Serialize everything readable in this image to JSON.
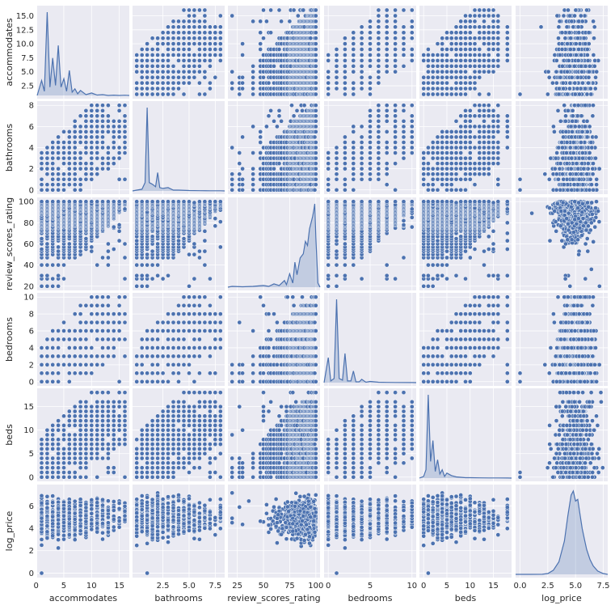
{
  "chart_data": {
    "type": "pairplot",
    "variables": [
      "accommodates",
      "bathrooms",
      "review_scores_rating",
      "bedrooms",
      "beds",
      "log_price"
    ],
    "point_color": "#4c72b0",
    "panel_background": "#eaeaf2",
    "grid": true,
    "axes": {
      "accommodates": {
        "range": [
          0.2,
          16.8
        ],
        "ticks": [
          0,
          5,
          10,
          15
        ],
        "tick_labels": [
          "0",
          "5",
          "10",
          "15"
        ],
        "y_ticks": [
          2.5,
          5.0,
          7.5,
          10.0,
          12.5,
          15.0
        ],
        "y_tick_labels": [
          "2.5",
          "5.0",
          "7.5",
          "10.0",
          "12.5",
          "15.0"
        ],
        "levels": [
          1,
          2,
          3,
          4,
          5,
          6,
          7,
          8,
          9,
          10,
          11,
          12,
          13,
          14,
          15,
          16
        ]
      },
      "bathrooms": {
        "range": [
          -0.4,
          8.4
        ],
        "ticks": [
          2.5,
          5.0,
          7.5
        ],
        "tick_labels": [
          "2.5",
          "5.0",
          "7.5"
        ],
        "y_ticks": [
          0,
          2,
          4,
          6,
          8
        ],
        "y_tick_labels": [
          "0",
          "2",
          "4",
          "6",
          "8"
        ],
        "levels": [
          0,
          0.5,
          1,
          1.5,
          2,
          2.5,
          3,
          3.5,
          4,
          4.5,
          5,
          5.5,
          6,
          6.5,
          7,
          7.5,
          8
        ]
      },
      "review_scores_rating": {
        "range": [
          16,
          104
        ],
        "ticks": [
          25,
          50,
          75,
          100
        ],
        "tick_labels": [
          "25",
          "50",
          "75",
          "100"
        ],
        "y_ticks": [
          20,
          40,
          60,
          80,
          100
        ],
        "y_tick_labels": [
          "20",
          "40",
          "60",
          "80",
          "100"
        ],
        "levels": [
          20,
          27,
          30,
          40,
          47,
          50,
          53,
          55,
          57,
          60,
          63,
          65,
          67,
          70,
          72,
          73,
          75,
          76,
          77,
          78,
          79,
          80,
          81,
          82,
          83,
          84,
          85,
          86,
          87,
          88,
          89,
          90,
          91,
          92,
          93,
          94,
          95,
          96,
          97,
          98,
          99,
          100
        ]
      },
      "bedrooms": {
        "range": [
          -0.5,
          10.5
        ],
        "ticks": [
          0,
          5,
          10
        ],
        "tick_labels": [
          "0",
          "5",
          "10"
        ],
        "y_ticks": [
          0,
          2,
          4,
          6,
          8,
          10
        ],
        "y_tick_labels": [
          "0",
          "2",
          "4",
          "6",
          "8",
          "10"
        ],
        "levels": [
          0,
          1,
          2,
          3,
          4,
          5,
          6,
          7,
          8,
          9,
          10
        ]
      },
      "beds": {
        "range": [
          -0.9,
          18.9
        ],
        "ticks": [
          0,
          5,
          10,
          15
        ],
        "tick_labels": [
          "0",
          "5",
          "10",
          "15"
        ],
        "y_ticks": [
          0,
          5,
          10,
          15
        ],
        "y_tick_labels": [
          "0",
          "5",
          "10",
          "15"
        ],
        "levels": [
          0,
          1,
          2,
          3,
          4,
          5,
          6,
          7,
          8,
          9,
          10,
          11,
          12,
          13,
          14,
          15,
          16,
          18
        ]
      },
      "log_price": {
        "range": [
          -0.4,
          7.9
        ],
        "ticks": [
          0.0,
          2.5,
          5.0,
          7.5
        ],
        "tick_labels": [
          "0.0",
          "2.5",
          "5.0",
          "7.5"
        ],
        "y_ticks": [
          0,
          2,
          4,
          6
        ],
        "y_tick_labels": [
          "0",
          "2",
          "4",
          "6"
        ],
        "levels": []
      }
    },
    "diagonal_kde": {
      "accommodates": {
        "x": [
          0.2,
          1,
          1.5,
          2,
          2.5,
          3,
          3.5,
          4,
          4.5,
          5,
          5.5,
          6,
          6.5,
          7,
          7.5,
          8,
          9,
          10,
          11,
          12,
          13,
          14,
          15,
          16,
          16.8
        ],
        "density": [
          0,
          0.18,
          0.05,
          1.0,
          0.1,
          0.45,
          0.12,
          0.6,
          0.1,
          0.2,
          0.05,
          0.3,
          0.04,
          0.08,
          0.02,
          0.06,
          0.01,
          0.03,
          0.005,
          0.01,
          0,
          0.004,
          0,
          0.003,
          0
        ]
      },
      "bathrooms": {
        "x": [
          -0.4,
          0,
          0.5,
          0.8,
          1,
          1.2,
          1.5,
          1.8,
          2,
          2.2,
          2.5,
          3,
          3.5,
          4,
          5,
          6,
          7,
          8,
          8.4
        ],
        "density": [
          0,
          0.01,
          0.02,
          0.1,
          1.0,
          0.1,
          0.08,
          0.05,
          0.22,
          0.04,
          0.03,
          0.04,
          0.01,
          0.01,
          0.005,
          0.003,
          0.002,
          0.002,
          0
        ]
      },
      "review_scores_rating": {
        "x": [
          16,
          20,
          30,
          40,
          50,
          55,
          60,
          65,
          70,
          72,
          75,
          78,
          80,
          82,
          85,
          88,
          90,
          92,
          94,
          96,
          97,
          98,
          99,
          100,
          102,
          104
        ],
        "density": [
          0,
          0.01,
          0.005,
          0.01,
          0.02,
          0.01,
          0.04,
          0.02,
          0.08,
          0.03,
          0.16,
          0.05,
          0.3,
          0.15,
          0.35,
          0.4,
          0.55,
          0.5,
          0.7,
          0.8,
          0.85,
          0.92,
          1.0,
          0.6,
          0.05,
          0
        ]
      },
      "bedrooms": {
        "x": [
          -0.5,
          0,
          0.3,
          0.7,
          1,
          1.3,
          1.7,
          2,
          2.3,
          2.7,
          3,
          3.3,
          3.7,
          4,
          4.5,
          5,
          6,
          7,
          8,
          10,
          10.5
        ],
        "density": [
          0,
          0.3,
          0.02,
          0.05,
          1.0,
          0.05,
          0.03,
          0.35,
          0.02,
          0.02,
          0.14,
          0.01,
          0.01,
          0.04,
          0.005,
          0.015,
          0.005,
          0.003,
          0.002,
          0.001,
          0
        ]
      },
      "beds": {
        "x": [
          -0.9,
          0,
          0.5,
          1,
          1.5,
          2,
          2.5,
          3,
          3.5,
          4,
          4.5,
          5,
          6,
          7,
          8,
          9,
          10,
          12,
          14,
          16,
          18,
          18.9
        ],
        "density": [
          0,
          0.02,
          0.1,
          1.0,
          0.2,
          0.45,
          0.08,
          0.22,
          0.05,
          0.1,
          0.02,
          0.06,
          0.03,
          0.015,
          0.01,
          0.005,
          0.005,
          0.003,
          0.002,
          0.002,
          0.001,
          0
        ]
      },
      "log_price": {
        "x": [
          -0.4,
          1,
          2,
          2.5,
          3,
          3.5,
          4,
          4.3,
          4.6,
          4.8,
          5,
          5.2,
          5.4,
          5.6,
          5.8,
          6,
          6.3,
          6.6,
          7,
          7.5,
          7.9
        ],
        "density": [
          0,
          0,
          0.001,
          0.01,
          0.05,
          0.15,
          0.4,
          0.7,
          0.95,
          1.0,
          0.88,
          0.9,
          0.72,
          0.55,
          0.42,
          0.3,
          0.18,
          0.1,
          0.04,
          0.01,
          0
        ]
      }
    }
  }
}
